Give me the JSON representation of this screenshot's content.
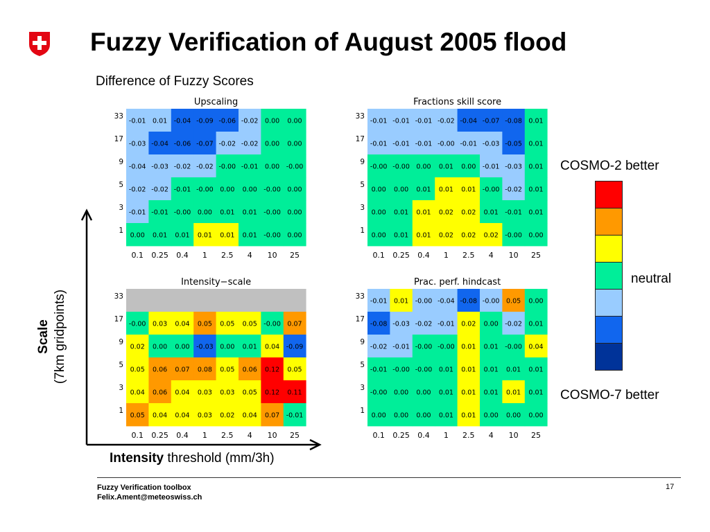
{
  "page_title": "Fuzzy Verification of August 2005 flood",
  "subtitle": "Difference of Fuzzy Scores",
  "axis_labels": {
    "scale_bold": "Scale",
    "scale_rest": "(7km gridpoints)",
    "intensity_bold": "Intensity",
    "intensity_rest": " threshold (mm/3h)"
  },
  "legend": {
    "top": "COSMO-2 better",
    "middle": "neutral",
    "bottom": "COSMO-7 better",
    "colors": [
      "#ff0000",
      "#ff9900",
      "#ffff00",
      "#00ee99",
      "#99ccff",
      "#1166ee",
      "#003399"
    ]
  },
  "footer": {
    "line1": "Fuzzy Verification toolbox",
    "line2": "Felix.Ament@meteoswiss.ch",
    "page": "17"
  },
  "chart_data": [
    {
      "type": "heatmap",
      "title": "Upscaling",
      "x": [
        "0.1",
        "0.25",
        "0.4",
        "1",
        "2.5",
        "4",
        "10",
        "25"
      ],
      "y": [
        "33",
        "17",
        "9",
        "5",
        "3",
        "1"
      ],
      "values": [
        [
          "-0.01",
          "0.01",
          "-0.04",
          "-0.09",
          "-0.06",
          "-0.02",
          "0.00",
          "0.00"
        ],
        [
          "-0.03",
          "-0.04",
          "-0.06",
          "-0.07",
          "-0.02",
          "-0.02",
          "0.00",
          "0.00"
        ],
        [
          "-0.04",
          "-0.03",
          "-0.02",
          "-0.02",
          "-0.00",
          "-0.01",
          "0.00",
          "-0.00"
        ],
        [
          "-0.02",
          "-0.02",
          "-0.01",
          "-0.00",
          "0.00",
          "0.00",
          "-0.00",
          "0.00"
        ],
        [
          "-0.01",
          "-0.01",
          "-0.00",
          "0.00",
          "0.01",
          "0.01",
          "-0.00",
          "0.00"
        ],
        [
          "0.00",
          "0.01",
          "0.01",
          "0.01",
          "0.01",
          "0.01",
          "-0.00",
          "0.00"
        ]
      ],
      "colors": [
        [
          "#99ccff",
          "#99ccff",
          "#1166ee",
          "#1166ee",
          "#1166ee",
          "#99ccff",
          "#00ee99",
          "#00ee99"
        ],
        [
          "#99ccff",
          "#1166ee",
          "#1166ee",
          "#1166ee",
          "#99ccff",
          "#99ccff",
          "#00ee99",
          "#00ee99"
        ],
        [
          "#99ccff",
          "#99ccff",
          "#99ccff",
          "#99ccff",
          "#00ee99",
          "#00ee99",
          "#00ee99",
          "#00ee99"
        ],
        [
          "#99ccff",
          "#99ccff",
          "#00ee99",
          "#00ee99",
          "#00ee99",
          "#00ee99",
          "#00ee99",
          "#00ee99"
        ],
        [
          "#99ccff",
          "#00ee99",
          "#00ee99",
          "#00ee99",
          "#00ee99",
          "#00ee99",
          "#00ee99",
          "#00ee99"
        ],
        [
          "#00ee99",
          "#00ee99",
          "#00ee99",
          "#ffff00",
          "#ffff00",
          "#00ee99",
          "#00ee99",
          "#00ee99"
        ]
      ]
    },
    {
      "type": "heatmap",
      "title": "Fractions skill score",
      "x": [
        "0.1",
        "0.25",
        "0.4",
        "1",
        "2.5",
        "4",
        "10",
        "25"
      ],
      "y": [
        "33",
        "17",
        "9",
        "5",
        "3",
        "1"
      ],
      "values": [
        [
          "-0.01",
          "-0.01",
          "-0.01",
          "-0.02",
          "-0.04",
          "-0.07",
          "-0.08",
          "0.01"
        ],
        [
          "-0.01",
          "-0.01",
          "-0.01",
          "-0.00",
          "-0.01",
          "-0.03",
          "-0.05",
          "0.01"
        ],
        [
          "-0.00",
          "-0.00",
          "0.00",
          "0.01",
          "0.00",
          "-0.01",
          "-0.03",
          "0.01"
        ],
        [
          "0.00",
          "0.00",
          "0.01",
          "0.01",
          "0.01",
          "-0.00",
          "-0.02",
          "0.01"
        ],
        [
          "0.00",
          "0.01",
          "0.01",
          "0.02",
          "0.02",
          "0.01",
          "-0.01",
          "0.01"
        ],
        [
          "0.00",
          "0.01",
          "0.01",
          "0.02",
          "0.02",
          "0.02",
          "-0.00",
          "0.00"
        ]
      ],
      "colors": [
        [
          "#99ccff",
          "#99ccff",
          "#99ccff",
          "#99ccff",
          "#1166ee",
          "#1166ee",
          "#1166ee",
          "#00ee99"
        ],
        [
          "#99ccff",
          "#99ccff",
          "#99ccff",
          "#99ccff",
          "#99ccff",
          "#99ccff",
          "#1166ee",
          "#00ee99"
        ],
        [
          "#00ee99",
          "#00ee99",
          "#00ee99",
          "#00ee99",
          "#00ee99",
          "#99ccff",
          "#99ccff",
          "#00ee99"
        ],
        [
          "#00ee99",
          "#00ee99",
          "#00ee99",
          "#ffff00",
          "#ffff00",
          "#00ee99",
          "#99ccff",
          "#00ee99"
        ],
        [
          "#00ee99",
          "#00ee99",
          "#ffff00",
          "#ffff00",
          "#ffff00",
          "#00ee99",
          "#00ee99",
          "#00ee99"
        ],
        [
          "#00ee99",
          "#00ee99",
          "#ffff00",
          "#ffff00",
          "#ffff00",
          "#ffff00",
          "#00ee99",
          "#00ee99"
        ]
      ]
    },
    {
      "type": "heatmap",
      "title": "Intensity−scale",
      "x": [
        "0.1",
        "0.25",
        "0.4",
        "1",
        "2.5",
        "4",
        "10",
        "25"
      ],
      "y": [
        "33",
        "17",
        "9",
        "5",
        "3",
        "1"
      ],
      "values": [
        [
          "",
          "",
          "",
          "",
          "",
          "",
          "",
          ""
        ],
        [
          "-0.00",
          "0.03",
          "0.04",
          "0.05",
          "0.05",
          "0.05",
          "-0.00",
          "0.07"
        ],
        [
          "0.02",
          "0.00",
          "0.00",
          "-0.03",
          "0.00",
          "0.01",
          "0.04",
          "-0.09"
        ],
        [
          "0.05",
          "0.06",
          "0.07",
          "0.08",
          "0.05",
          "0.06",
          "0.12",
          "0.05"
        ],
        [
          "0.04",
          "0.06",
          "0.04",
          "0.03",
          "0.03",
          "0.05",
          "0.12",
          "0.11"
        ],
        [
          "0.05",
          "0.04",
          "0.04",
          "0.03",
          "0.02",
          "0.04",
          "0.07",
          "-0.01"
        ]
      ],
      "colors": [
        [
          "#c0c0c0",
          "#c0c0c0",
          "#c0c0c0",
          "#c0c0c0",
          "#c0c0c0",
          "#c0c0c0",
          "#c0c0c0",
          "#c0c0c0"
        ],
        [
          "#00ee99",
          "#ffff00",
          "#ffff00",
          "#ff9900",
          "#ffff00",
          "#ffff00",
          "#00ee99",
          "#ff9900"
        ],
        [
          "#ffff00",
          "#00ee99",
          "#00ee99",
          "#1166ee",
          "#00ee99",
          "#00ee99",
          "#ffff00",
          "#1166ee"
        ],
        [
          "#ffff00",
          "#ff9900",
          "#ff9900",
          "#ff9900",
          "#ffff00",
          "#ff9900",
          "#ff0000",
          "#ffff00"
        ],
        [
          "#ffff00",
          "#ff9900",
          "#ffff00",
          "#ffff00",
          "#ffff00",
          "#ffff00",
          "#ff0000",
          "#ff0000"
        ],
        [
          "#ff9900",
          "#ffff00",
          "#ffff00",
          "#ffff00",
          "#ffff00",
          "#ffff00",
          "#ff9900",
          "#00ee99"
        ]
      ]
    },
    {
      "type": "heatmap",
      "title": "Prac. perf. hindcast",
      "x": [
        "0.1",
        "0.25",
        "0.4",
        "1",
        "2.5",
        "4",
        "10",
        "25"
      ],
      "y": [
        "33",
        "17",
        "9",
        "5",
        "3",
        "1"
      ],
      "values": [
        [
          "-0.01",
          "0.01",
          "-0.00",
          "-0.04",
          "-0.08",
          "-0.00",
          "0.05",
          "0.00"
        ],
        [
          "-0.08",
          "-0.03",
          "-0.02",
          "-0.01",
          "0.02",
          "0.00",
          "-0.02",
          "0.01"
        ],
        [
          "-0.02",
          "-0.01",
          "-0.00",
          "-0.00",
          "0.01",
          "0.01",
          "-0.00",
          "0.04"
        ],
        [
          "-0.01",
          "-0.00",
          "-0.00",
          "0.01",
          "0.01",
          "0.01",
          "0.01",
          "0.01"
        ],
        [
          "-0.00",
          "0.00",
          "0.00",
          "0.01",
          "0.01",
          "0.01",
          "0.01",
          "0.01"
        ],
        [
          "0.00",
          "0.00",
          "0.00",
          "0.01",
          "0.01",
          "0.00",
          "0.00",
          "0.00"
        ]
      ],
      "colors": [
        [
          "#99ccff",
          "#ffff00",
          "#99ccff",
          "#99ccff",
          "#1166ee",
          "#99ccff",
          "#ff9900",
          "#00ee99"
        ],
        [
          "#1166ee",
          "#99ccff",
          "#99ccff",
          "#99ccff",
          "#ffff00",
          "#00ee99",
          "#99ccff",
          "#00ee99"
        ],
        [
          "#99ccff",
          "#99ccff",
          "#00ee99",
          "#00ee99",
          "#ffff00",
          "#00ee99",
          "#00ee99",
          "#ffff00"
        ],
        [
          "#00ee99",
          "#00ee99",
          "#00ee99",
          "#00ee99",
          "#ffff00",
          "#00ee99",
          "#00ee99",
          "#00ee99"
        ],
        [
          "#00ee99",
          "#00ee99",
          "#00ee99",
          "#00ee99",
          "#ffff00",
          "#00ee99",
          "#ffff00",
          "#00ee99"
        ],
        [
          "#00ee99",
          "#00ee99",
          "#00ee99",
          "#00ee99",
          "#ffff00",
          "#00ee99",
          "#00ee99",
          "#00ee99"
        ]
      ]
    }
  ]
}
